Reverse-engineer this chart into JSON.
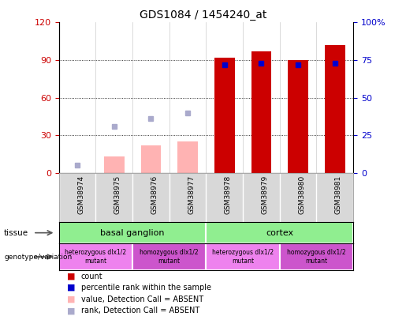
{
  "title": "GDS1084 / 1454240_at",
  "samples": [
    "GSM38974",
    "GSM38975",
    "GSM38976",
    "GSM38977",
    "GSM38978",
    "GSM38979",
    "GSM38980",
    "GSM38981"
  ],
  "count_values": [
    0,
    0,
    0,
    0,
    92,
    97,
    90,
    102
  ],
  "percentile_rank": [
    null,
    null,
    null,
    null,
    72,
    73,
    72,
    73
  ],
  "absent_value": [
    0,
    13,
    22,
    25,
    0,
    0,
    0,
    0
  ],
  "absent_rank": [
    5,
    31,
    36,
    40,
    0,
    0,
    0,
    0
  ],
  "absent_flags": [
    true,
    true,
    true,
    true,
    false,
    false,
    false,
    false
  ],
  "bar_color_count": "#cc0000",
  "bar_color_absent": "#ffb3b3",
  "dot_color_rank": "#0000cc",
  "dot_color_absent_rank": "#aaaacc",
  "ylim_left": [
    0,
    120
  ],
  "ylim_right": [
    0,
    100
  ],
  "yticks_left": [
    0,
    30,
    60,
    90,
    120
  ],
  "yticks_right": [
    0,
    25,
    50,
    75,
    100
  ],
  "ytick_labels_left": [
    "0",
    "30",
    "60",
    "90",
    "120"
  ],
  "ytick_labels_right": [
    "0",
    "25",
    "50",
    "75",
    "100%"
  ],
  "tissue_groups": [
    {
      "label": "basal ganglion",
      "start": 0,
      "end": 4,
      "color": "#90ee90"
    },
    {
      "label": "cortex",
      "start": 4,
      "end": 8,
      "color": "#90ee90"
    }
  ],
  "genotype_groups": [
    {
      "label": "heterozygous dlx1/2\nmutant",
      "start": 0,
      "end": 2,
      "color": "#ee82ee"
    },
    {
      "label": "homozygous dlx1/2\nmutant",
      "start": 2,
      "end": 4,
      "color": "#cc55cc"
    },
    {
      "label": "heterozygous dlx1/2\nmutant",
      "start": 4,
      "end": 6,
      "color": "#ee82ee"
    },
    {
      "label": "homozygous dlx1/2\nmutant",
      "start": 6,
      "end": 8,
      "color": "#cc55cc"
    }
  ],
  "legend_items": [
    {
      "color": "#cc0000",
      "label": "count"
    },
    {
      "color": "#0000cc",
      "label": "percentile rank within the sample"
    },
    {
      "color": "#ffb3b3",
      "label": "value, Detection Call = ABSENT"
    },
    {
      "color": "#aaaacc",
      "label": "rank, Detection Call = ABSENT"
    }
  ],
  "left_tick_color": "#cc0000",
  "right_tick_color": "#0000cc",
  "tissue_label": "tissue",
  "genotype_label": "genotype/variation"
}
